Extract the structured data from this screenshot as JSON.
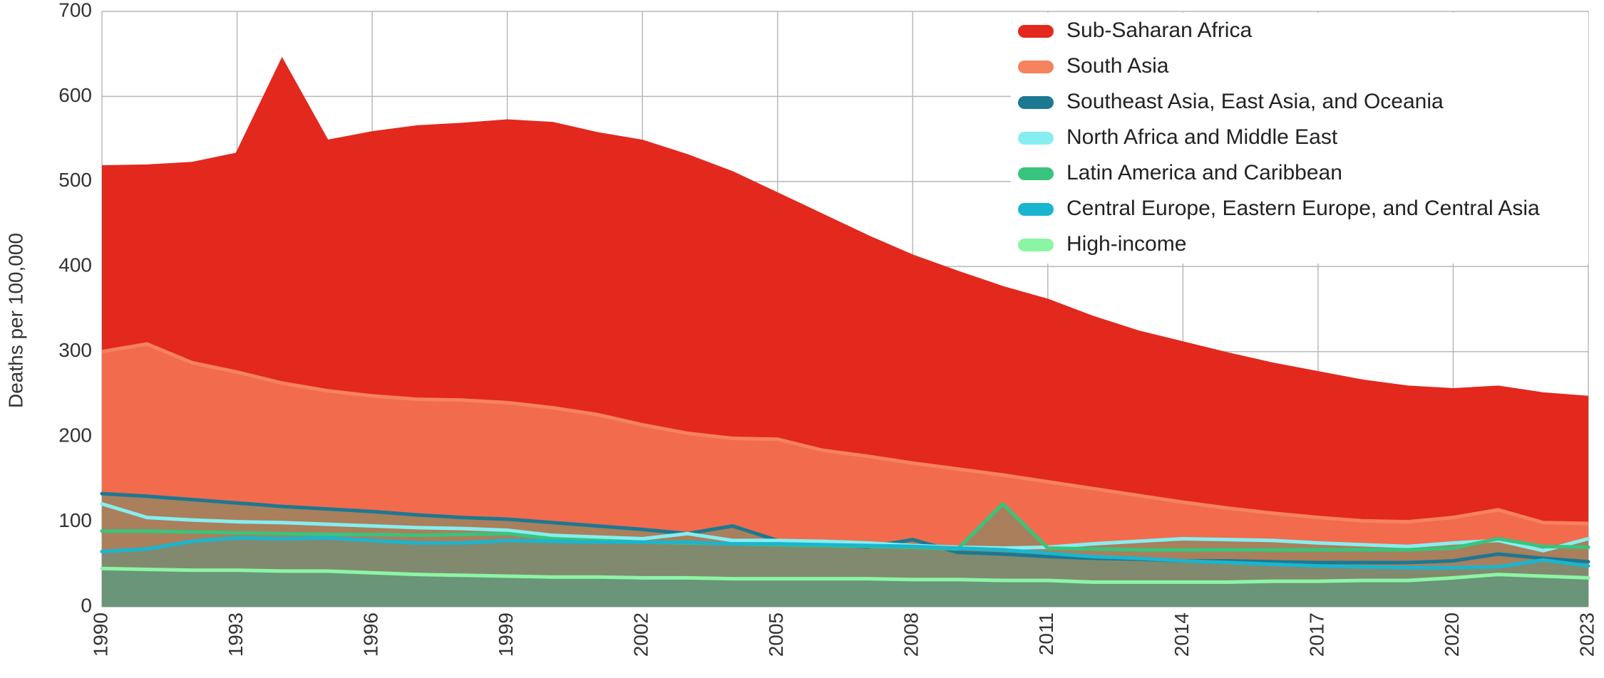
{
  "chart_data": {
    "type": "area",
    "title": "",
    "xlabel": "",
    "ylabel": "Deaths per 100,000",
    "ylim": [
      0,
      700
    ],
    "xlim": [
      1990,
      2023
    ],
    "grid": true,
    "legend_position": "top-right",
    "x": [
      1990,
      1991,
      1992,
      1993,
      1994,
      1995,
      1996,
      1997,
      1998,
      1999,
      2000,
      2001,
      2002,
      2003,
      2004,
      2005,
      2006,
      2007,
      2008,
      2009,
      2010,
      2011,
      2012,
      2013,
      2014,
      2015,
      2016,
      2017,
      2018,
      2019,
      2020,
      2021,
      2022,
      2023
    ],
    "x_ticks": [
      "1990",
      "1993",
      "1996",
      "1999",
      "2002",
      "2005",
      "2008",
      "2011",
      "2014",
      "2017",
      "2020",
      "2023"
    ],
    "y_ticks": [
      "0",
      "100",
      "200",
      "300",
      "400",
      "500",
      "600",
      "700"
    ],
    "series": [
      {
        "name": "Sub-Saharan Africa",
        "color": "#e3281e",
        "style": "area",
        "values": [
          517,
          518,
          521,
          532,
          642,
          547,
          557,
          564,
          567,
          571,
          568,
          556,
          547,
          530,
          510,
          485,
          460,
          435,
          412,
          393,
          375,
          360,
          340,
          323,
          310,
          297,
          285,
          275,
          265,
          258,
          255,
          258,
          250,
          246
        ]
      },
      {
        "name": "South Asia",
        "color": "#f7825e",
        "style": "area",
        "values": [
          300,
          309,
          287,
          276,
          263,
          254,
          248,
          244,
          243,
          240,
          234,
          226,
          214,
          204,
          198,
          197,
          184,
          177,
          169,
          162,
          155,
          147,
          139,
          131,
          123,
          116,
          110,
          105,
          101,
          100,
          105,
          114,
          99,
          98
        ]
      },
      {
        "name": "Southeast Asia, East Asia, and Oceania",
        "color": "#1d7892",
        "style": "line",
        "values": [
          133,
          130,
          126,
          122,
          118,
          115,
          112,
          108,
          105,
          103,
          99,
          95,
          91,
          86,
          95,
          78,
          74,
          70,
          79,
          64,
          62,
          59,
          57,
          56,
          54,
          54,
          53,
          52,
          52,
          52,
          54,
          62,
          57,
          53
        ]
      },
      {
        "name": "North Africa and Middle East",
        "color": "#86eef0",
        "style": "line",
        "values": [
          121,
          105,
          102,
          100,
          99,
          97,
          95,
          93,
          92,
          90,
          84,
          82,
          80,
          86,
          78,
          78,
          77,
          75,
          72,
          70,
          69,
          70,
          74,
          77,
          80,
          79,
          78,
          75,
          73,
          71,
          75,
          78,
          66,
          80
        ]
      },
      {
        "name": "Latin America and Caribbean",
        "color": "#38c47c",
        "style": "line",
        "values": [
          89,
          89,
          88,
          87,
          86,
          85,
          85,
          84,
          85,
          86,
          80,
          78,
          76,
          75,
          74,
          73,
          72,
          71,
          70,
          68,
          121,
          69,
          68,
          67,
          67,
          67,
          67,
          67,
          67,
          67,
          69,
          80,
          71,
          70
        ]
      },
      {
        "name": "Central Europe, Eastern Europe, and Central Asia",
        "color": "#1ab5cf",
        "style": "line",
        "values": [
          65,
          68,
          77,
          81,
          80,
          81,
          78,
          75,
          75,
          78,
          77,
          76,
          76,
          76,
          74,
          74,
          73,
          72,
          71,
          69,
          67,
          63,
          59,
          57,
          54,
          52,
          50,
          48,
          47,
          46,
          46,
          47,
          55,
          48
        ]
      },
      {
        "name": "High-income",
        "color": "#8cf5a4",
        "style": "line",
        "values": [
          45,
          44,
          43,
          43,
          42,
          42,
          40,
          38,
          37,
          36,
          35,
          35,
          34,
          34,
          33,
          33,
          33,
          33,
          32,
          32,
          31,
          31,
          29,
          29,
          29,
          29,
          30,
          30,
          31,
          31,
          34,
          38,
          36,
          34
        ]
      }
    ]
  }
}
